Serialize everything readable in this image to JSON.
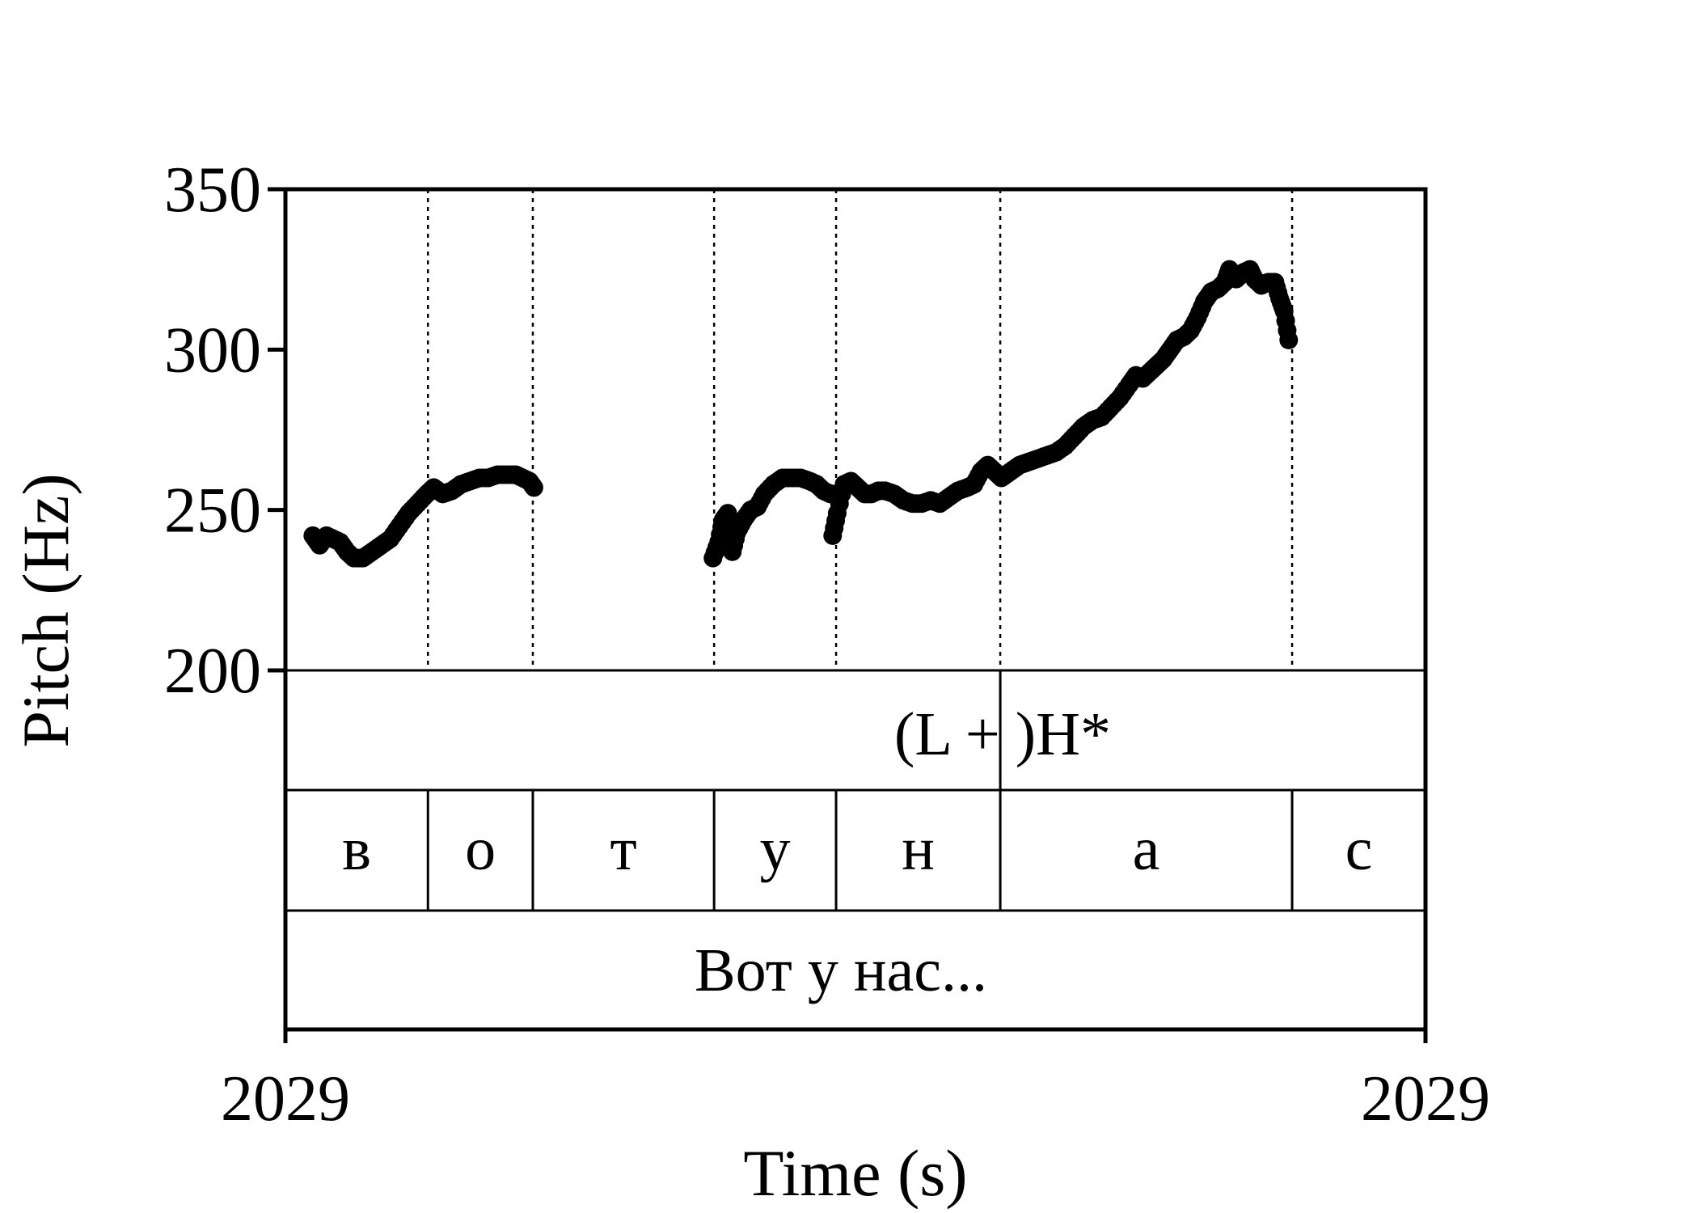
{
  "chart_data": {
    "type": "scatter",
    "title": "",
    "xlabel": "Time (s)",
    "ylabel": "Pitch (Hz)",
    "ylim": [
      200,
      350
    ],
    "yticks": [
      "200",
      "250",
      "300",
      "350"
    ],
    "xtick_labels": [
      "2029",
      "2029"
    ],
    "grid": false,
    "point_color": "#000000",
    "segments": [
      {
        "label": "в",
        "start": 0.0,
        "end": 0.125
      },
      {
        "label": "о",
        "start": 0.125,
        "end": 0.217
      },
      {
        "label": "т",
        "start": 0.217,
        "end": 0.376
      },
      {
        "label": "у",
        "start": 0.376,
        "end": 0.483
      },
      {
        "label": "н",
        "start": 0.483,
        "end": 0.627
      },
      {
        "label": "а",
        "start": 0.627,
        "end": 0.883
      },
      {
        "label": "с",
        "start": 0.883,
        "end": 1.0
      }
    ],
    "boundaries": [
      0.125,
      0.217,
      0.376,
      0.483,
      0.627,
      0.883
    ],
    "tone_tier": {
      "label": "(L + )H*",
      "boundary": 0.627
    },
    "word_tier": {
      "label": "Вот у нас..."
    },
    "pitch_contours": [
      [
        [
          0.024,
          242
        ],
        [
          0.03,
          239
        ],
        [
          0.036,
          242
        ],
        [
          0.042,
          241
        ],
        [
          0.048,
          240
        ],
        [
          0.054,
          237
        ],
        [
          0.06,
          235
        ],
        [
          0.068,
          235
        ],
        [
          0.076,
          237
        ],
        [
          0.084,
          239
        ],
        [
          0.092,
          241
        ],
        [
          0.1,
          245
        ],
        [
          0.108,
          249
        ],
        [
          0.116,
          252
        ],
        [
          0.124,
          255
        ],
        [
          0.13,
          257
        ],
        [
          0.138,
          255
        ],
        [
          0.146,
          256
        ],
        [
          0.154,
          258
        ],
        [
          0.162,
          259
        ],
        [
          0.17,
          260
        ],
        [
          0.178,
          260
        ],
        [
          0.186,
          261
        ],
        [
          0.194,
          261
        ],
        [
          0.202,
          261
        ],
        [
          0.208,
          260
        ],
        [
          0.214,
          259
        ],
        [
          0.218,
          257
        ]
      ],
      [
        [
          0.375,
          235
        ],
        [
          0.38,
          240
        ],
        [
          0.384,
          247
        ],
        [
          0.388,
          249
        ],
        [
          0.392,
          237
        ],
        [
          0.396,
          243
        ],
        [
          0.402,
          247
        ],
        [
          0.408,
          250
        ],
        [
          0.414,
          251
        ],
        [
          0.42,
          255
        ],
        [
          0.428,
          258
        ],
        [
          0.436,
          260
        ],
        [
          0.444,
          260
        ],
        [
          0.452,
          260
        ],
        [
          0.46,
          259
        ],
        [
          0.466,
          258
        ],
        [
          0.472,
          256
        ],
        [
          0.478,
          255
        ],
        [
          0.484,
          255
        ],
        [
          0.48,
          242
        ],
        [
          0.484,
          249
        ],
        [
          0.49,
          258
        ],
        [
          0.496,
          259
        ],
        [
          0.502,
          257
        ],
        [
          0.508,
          255
        ],
        [
          0.514,
          255
        ],
        [
          0.52,
          256
        ],
        [
          0.526,
          256
        ],
        [
          0.534,
          255
        ],
        [
          0.542,
          253
        ],
        [
          0.55,
          252
        ],
        [
          0.558,
          252
        ],
        [
          0.566,
          253
        ],
        [
          0.574,
          252
        ],
        [
          0.582,
          254
        ],
        [
          0.59,
          256
        ],
        [
          0.598,
          257
        ],
        [
          0.604,
          258
        ],
        [
          0.61,
          262
        ],
        [
          0.616,
          264
        ],
        [
          0.622,
          262
        ],
        [
          0.628,
          260
        ],
        [
          0.636,
          262
        ],
        [
          0.644,
          264
        ],
        [
          0.652,
          265
        ],
        [
          0.66,
          266
        ],
        [
          0.668,
          267
        ],
        [
          0.676,
          268
        ],
        [
          0.684,
          270
        ],
        [
          0.692,
          273
        ],
        [
          0.7,
          276
        ],
        [
          0.708,
          278
        ],
        [
          0.716,
          279
        ],
        [
          0.724,
          282
        ],
        [
          0.732,
          285
        ],
        [
          0.74,
          289
        ],
        [
          0.746,
          292
        ],
        [
          0.752,
          291
        ],
        [
          0.758,
          293
        ],
        [
          0.764,
          295
        ],
        [
          0.77,
          297
        ],
        [
          0.776,
          300
        ],
        [
          0.782,
          303
        ],
        [
          0.788,
          304
        ],
        [
          0.794,
          306
        ],
        [
          0.8,
          310
        ],
        [
          0.806,
          315
        ],
        [
          0.812,
          318
        ],
        [
          0.818,
          319
        ],
        [
          0.824,
          321
        ],
        [
          0.828,
          325
        ],
        [
          0.834,
          322
        ],
        [
          0.84,
          324
        ],
        [
          0.846,
          325
        ],
        [
          0.85,
          322
        ],
        [
          0.856,
          320
        ],
        [
          0.862,
          321
        ],
        [
          0.868,
          321
        ],
        [
          0.872,
          316
        ],
        [
          0.876,
          312
        ],
        [
          0.88,
          303
        ]
      ]
    ]
  }
}
